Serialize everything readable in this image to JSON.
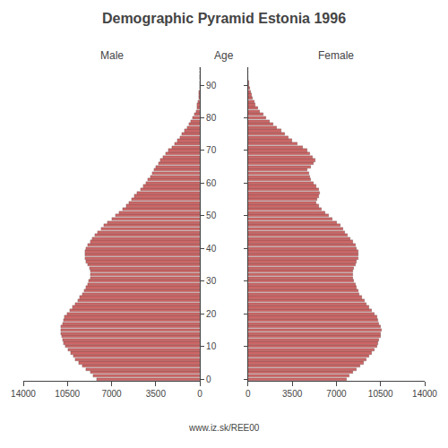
{
  "chart_data": {
    "type": "bar",
    "orientation": "horizontal",
    "title": "Demographic Pyramid Estonia 1996",
    "ylabel": "Age",
    "source": "www.iz.sk/REE00",
    "categories": [
      "0",
      null,
      null,
      null,
      null,
      null,
      null,
      null,
      null,
      null,
      "10",
      null,
      null,
      null,
      null,
      null,
      null,
      null,
      null,
      null,
      "20",
      null,
      null,
      null,
      null,
      null,
      null,
      null,
      null,
      null,
      "30",
      null,
      null,
      null,
      null,
      null,
      null,
      null,
      null,
      null,
      "40",
      null,
      null,
      null,
      null,
      null,
      null,
      null,
      null,
      null,
      "50",
      null,
      null,
      null,
      null,
      null,
      null,
      null,
      null,
      null,
      "60",
      null,
      null,
      null,
      null,
      null,
      null,
      null,
      null,
      null,
      "70",
      null,
      null,
      null,
      null,
      null,
      null,
      null,
      null,
      null,
      "80",
      null,
      null,
      null,
      null,
      null,
      null,
      null,
      null,
      null,
      "90",
      null,
      null,
      null,
      null,
      null
    ],
    "series": [
      {
        "name": "Male",
        "color": "#cc6666",
        "values": [
          8200,
          8450,
          8700,
          9000,
          9300,
          9600,
          9850,
          10050,
          10250,
          10450,
          10650,
          10800,
          10900,
          10950,
          11000,
          11050,
          11000,
          10900,
          10800,
          10700,
          10500,
          10300,
          10100,
          9900,
          9700,
          9500,
          9300,
          9150,
          9000,
          8900,
          8800,
          8700,
          8700,
          8700,
          8750,
          8900,
          9000,
          9100,
          9100,
          9100,
          9000,
          8900,
          8700,
          8500,
          8300,
          8100,
          7850,
          7600,
          7300,
          7000,
          6700,
          6400,
          6100,
          5800,
          5600,
          5400,
          5200,
          5000,
          4700,
          4500,
          4300,
          4100,
          3900,
          3800,
          3600,
          3500,
          3300,
          3100,
          2900,
          2700,
          2500,
          2200,
          2000,
          1800,
          1600,
          1400,
          1200,
          1000,
          850,
          700,
          550,
          430,
          320,
          250,
          190,
          140,
          100,
          70,
          50,
          30,
          20,
          12,
          7,
          4,
          2,
          1
        ]
      },
      {
        "name": "Female",
        "color": "#cc6666",
        "values": [
          7800,
          8050,
          8300,
          8600,
          8900,
          9150,
          9400,
          9600,
          9800,
          10000,
          10200,
          10300,
          10400,
          10500,
          10500,
          10550,
          10500,
          10400,
          10300,
          10200,
          10000,
          9800,
          9600,
          9400,
          9200,
          9000,
          8800,
          8700,
          8600,
          8500,
          8400,
          8300,
          8300,
          8300,
          8400,
          8500,
          8600,
          8700,
          8700,
          8700,
          8600,
          8500,
          8300,
          8100,
          7900,
          7700,
          7500,
          7300,
          7000,
          6700,
          6400,
          6100,
          5800,
          5600,
          5400,
          5500,
          5600,
          5700,
          5600,
          5400,
          5200,
          5000,
          4900,
          4800,
          4700,
          5000,
          5200,
          5300,
          5100,
          4900,
          4700,
          4300,
          3900,
          3500,
          3200,
          2900,
          2600,
          2300,
          2000,
          1700,
          1450,
          1200,
          950,
          750,
          600,
          480,
          370,
          280,
          200,
          140,
          90,
          60,
          35,
          20,
          10,
          5
        ]
      }
    ],
    "xlim": [
      0,
      14000
    ],
    "xticks": [
      0,
      3500,
      7000,
      10500,
      14000
    ],
    "grid": false
  }
}
